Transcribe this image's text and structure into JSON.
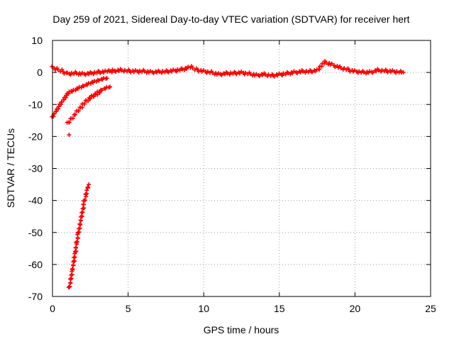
{
  "chart_data": {
    "type": "scatter",
    "title": "Day 259 of 2021, Sidereal Day-to-day VTEC variation (SDTVAR) for receiver hert",
    "xlabel": "GPS time / hours",
    "ylabel": "SDTVAR / TECUs",
    "xlim": [
      0,
      25
    ],
    "ylim": [
      -70,
      10
    ],
    "xticks": [
      0,
      5,
      10,
      15,
      20,
      25
    ],
    "yticks": [
      -70,
      -60,
      -50,
      -40,
      -30,
      -20,
      -10,
      0,
      10
    ],
    "grid": true,
    "marker": "plus",
    "colors": {
      "series": "#ff0000",
      "axis": "#000000",
      "grid": "#a0a0a0",
      "background": "#ffffff"
    },
    "series": [
      {
        "x": [
          0.0,
          0.3,
          0.6,
          1.0,
          1.5,
          2.0,
          2.5,
          3.0,
          3.5,
          3.7,
          4.0,
          4.5,
          5.0,
          5.5,
          6.0,
          6.5,
          7.0,
          7.5,
          8.0,
          8.5,
          9.0,
          9.2,
          9.5,
          10.0,
          10.5,
          11.0,
          11.5,
          12.0,
          12.5,
          13.0,
          13.5,
          14.0,
          14.5,
          15.0,
          15.5,
          16.0,
          16.5,
          17.0,
          17.5,
          18.0,
          18.5,
          19.0,
          19.5,
          20.0,
          20.5,
          21.0,
          21.5,
          22.0,
          22.5,
          23.0,
          23.2
        ],
        "y": [
          1.5,
          1.0,
          0.5,
          -0.5,
          -0.2,
          -0.5,
          -0.3,
          0.1,
          0.2,
          0.3,
          0.5,
          0.7,
          0.5,
          0.3,
          0.4,
          0.1,
          0.2,
          0.3,
          0.5,
          0.9,
          1.4,
          1.6,
          0.9,
          0.3,
          0.0,
          -0.6,
          -0.3,
          -0.2,
          -0.1,
          -0.4,
          -0.9,
          -0.6,
          -1.0,
          -0.7,
          -0.3,
          0.0,
          0.3,
          0.3,
          0.6,
          3.2,
          2.4,
          1.5,
          0.9,
          0.3,
          0.1,
          0.0,
          0.7,
          0.5,
          0.3,
          0.1,
          0.0
        ]
      },
      {
        "x": [
          0.0,
          0.1,
          0.2,
          0.3,
          0.4,
          0.5,
          0.6,
          0.7,
          0.8,
          0.9,
          1.0,
          1.1,
          1.2,
          1.4,
          1.6,
          1.8,
          2.0,
          2.2,
          2.4,
          2.6,
          2.8,
          3.0,
          3.2,
          3.4,
          3.6
        ],
        "y": [
          -14.2,
          -13.3,
          -12.5,
          -11.8,
          -11.0,
          -10.3,
          -9.6,
          -8.9,
          -8.2,
          -7.5,
          -6.9,
          -6.4,
          -6.2,
          -5.8,
          -5.3,
          -4.9,
          -4.5,
          -4.1,
          -3.7,
          -3.3,
          -3.0,
          -2.7,
          -2.4,
          -2.1,
          -1.8
        ]
      },
      {
        "x": [
          1.0,
          1.2,
          1.4,
          1.6,
          1.8,
          2.0,
          2.2,
          2.4,
          2.6,
          2.8,
          3.0,
          3.2,
          3.4,
          3.6,
          3.8
        ],
        "y": [
          -16.0,
          -14.8,
          -13.6,
          -12.4,
          -11.3,
          -10.2,
          -9.1,
          -8.3,
          -7.6,
          -7.0,
          -6.4,
          -5.8,
          -5.3,
          -4.9,
          -4.5
        ]
      },
      {
        "x": [
          1.1
        ],
        "y": [
          -19.5
        ]
      },
      {
        "x": [
          1.1,
          1.2,
          1.3,
          1.4,
          1.5,
          1.6,
          1.7,
          1.8,
          1.9,
          2.0,
          2.1,
          2.2,
          2.3,
          2.4
        ],
        "y": [
          -67.5,
          -65.0,
          -62.0,
          -59.5,
          -56.5,
          -53.5,
          -50.5,
          -48.0,
          -45.5,
          -43.0,
          -40.5,
          -38.5,
          -36.5,
          -35.0
        ]
      }
    ]
  }
}
